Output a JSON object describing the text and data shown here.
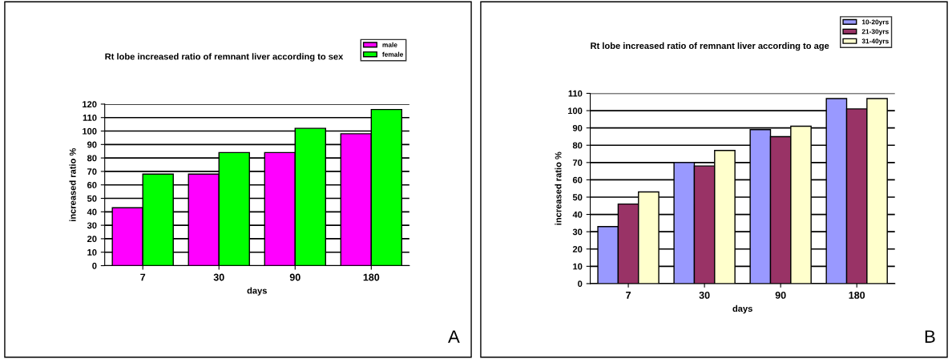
{
  "chart_data": [
    {
      "type": "bar",
      "title": "Rt lobe increased ratio of remnant liver according to sex",
      "xlabel": "days",
      "ylabel": "increased ratio %",
      "categories": [
        "7",
        "30",
        "90",
        "180"
      ],
      "series": [
        {
          "name": "male",
          "color": "#ff00ff",
          "values": [
            43,
            68,
            84,
            98
          ]
        },
        {
          "name": "female",
          "color": "#00ff00",
          "values": [
            68,
            84,
            102,
            116
          ]
        }
      ],
      "ylim": [
        0,
        120
      ],
      "yticks": [
        0,
        10,
        20,
        30,
        40,
        50,
        60,
        70,
        80,
        90,
        100,
        110,
        120
      ],
      "grid": "y",
      "legend": "top right",
      "annotations": [
        "A"
      ]
    },
    {
      "type": "bar",
      "title": "Rt lobe increased ratio of remnant liver according to age",
      "xlabel": "days",
      "ylabel": "increased ratio %",
      "categories": [
        "7",
        "30",
        "90",
        "180"
      ],
      "series": [
        {
          "name": "10-20yrs",
          "color": "#9999ff",
          "values": [
            33,
            70,
            89,
            107
          ]
        },
        {
          "name": "21-30yrs",
          "color": "#993366",
          "values": [
            46,
            68,
            85,
            101
          ]
        },
        {
          "name": "31-40yrs",
          "color": "#ffffcc",
          "values": [
            53,
            77,
            91,
            107
          ]
        }
      ],
      "ylim": [
        0,
        110
      ],
      "yticks": [
        0,
        10,
        20,
        30,
        40,
        50,
        60,
        70,
        80,
        90,
        100,
        110
      ],
      "grid": "y",
      "legend": "top right",
      "annotations": [
        "B"
      ]
    }
  ]
}
